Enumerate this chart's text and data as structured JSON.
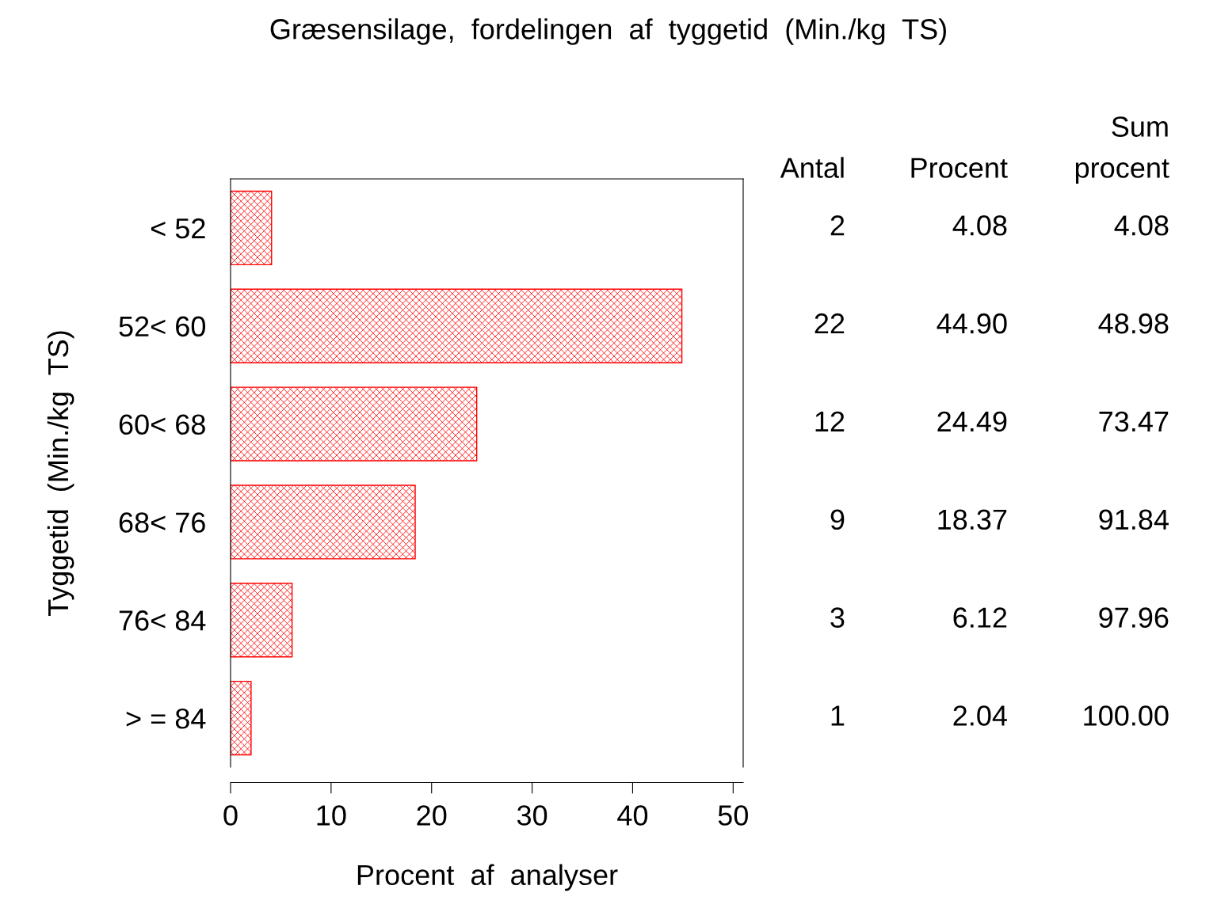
{
  "chart_data": {
    "type": "bar",
    "orientation": "horizontal",
    "title": "Græsensilage,  fordelingen  af  tyggetid  (Min./kg  TS)",
    "xlabel": "Procent  af  analyser",
    "ylabel": "Tyggetid  (Min./kg  TS)",
    "categories": [
      "< 52",
      "52< 60",
      "60< 68",
      "68< 76",
      "76< 84",
      "> = 84"
    ],
    "values": [
      4.08,
      44.9,
      24.49,
      18.37,
      6.12,
      2.04
    ],
    "value_labels": [
      "4.08",
      "44.90",
      "24.49",
      "18.37",
      "6.12",
      "2.04"
    ],
    "color": "#ff0000",
    "xlim": [
      0,
      51
    ],
    "xticks": [
      0,
      10,
      20,
      30,
      40,
      50
    ],
    "grid": false,
    "legend": false,
    "annotations": [
      "Antal",
      "Procent",
      "Sum\nprocent",
      "2",
      "22",
      "12",
      "9",
      "3",
      "1",
      "4.08",
      "48.98",
      "73.47",
      "91.84",
      "97.96",
      "100.00"
    ]
  }
}
